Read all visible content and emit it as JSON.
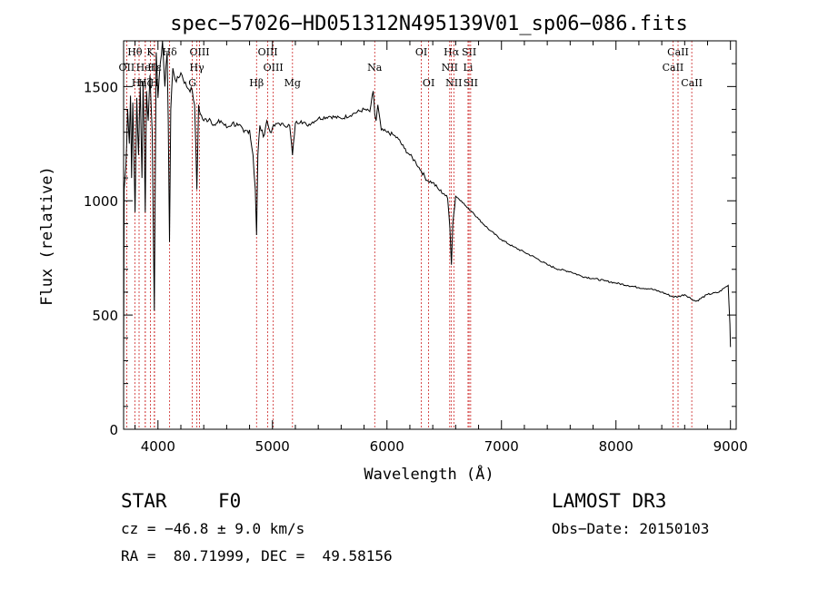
{
  "chart_data": {
    "type": "line",
    "title": "spec−57026−HD051312N495139V01_sp06−086.fits",
    "xlabel": "Wavelength (Å)",
    "ylabel": "Flux (relative)",
    "xlim": [
      3700,
      9050
    ],
    "ylim": [
      0,
      1700
    ],
    "xticks": [
      4000,
      5000,
      6000,
      7000,
      8000,
      9000
    ],
    "yticks": [
      0,
      500,
      1000,
      1500
    ],
    "grid": false,
    "series": [
      {
        "name": "Flux",
        "color": "#000000",
        "x": [
          3700,
          3705,
          3720,
          3735,
          3750,
          3760,
          3770,
          3780,
          3790,
          3800,
          3815,
          3830,
          3845,
          3860,
          3870,
          3880,
          3889,
          3900,
          3915,
          3930,
          3950,
          3968,
          3985,
          4000,
          4020,
          4040,
          4060,
          4080,
          4090,
          4101,
          4112,
          4130,
          4160,
          4200,
          4250,
          4300,
          4320,
          4340,
          4355,
          4370,
          4400,
          4450,
          4500,
          4550,
          4600,
          4650,
          4700,
          4750,
          4800,
          4830,
          4850,
          4861,
          4872,
          4890,
          4920,
          4950,
          4980,
          5000,
          5050,
          5100,
          5150,
          5175,
          5200,
          5250,
          5300,
          5400,
          5500,
          5600,
          5700,
          5800,
          5850,
          5880,
          5893,
          5905,
          5920,
          5950,
          6000,
          6050,
          6100,
          6150,
          6200,
          6250,
          6300,
          6350,
          6400,
          6450,
          6500,
          6530,
          6550,
          6563,
          6575,
          6600,
          6650,
          6700,
          6750,
          6800,
          6900,
          7000,
          7100,
          7200,
          7300,
          7400,
          7500,
          7600,
          7700,
          7800,
          7900,
          8000,
          8100,
          8200,
          8300,
          8400,
          8498,
          8542,
          8600,
          8662,
          8700,
          8800,
          8900,
          8950,
          8980,
          8995,
          9000
        ],
        "y": [
          300,
          1050,
          1150,
          1400,
          1250,
          1460,
          1100,
          1430,
          1200,
          950,
          1450,
          1200,
          1500,
          1100,
          1520,
          1300,
          950,
          1480,
          1350,
          1550,
          1300,
          520,
          1650,
          1450,
          1600,
          1700,
          1500,
          1650,
          1350,
          820,
          1400,
          1580,
          1520,
          1560,
          1500,
          1480,
          1420,
          1050,
          1420,
          1380,
          1350,
          1360,
          1330,
          1350,
          1320,
          1340,
          1330,
          1300,
          1310,
          1200,
          1050,
          850,
          1200,
          1330,
          1280,
          1350,
          1300,
          1320,
          1340,
          1330,
          1330,
          1200,
          1340,
          1350,
          1330,
          1360,
          1370,
          1360,
          1380,
          1400,
          1390,
          1480,
          1380,
          1350,
          1420,
          1310,
          1300,
          1290,
          1270,
          1230,
          1200,
          1170,
          1130,
          1090,
          1080,
          1050,
          1030,
          1010,
          880,
          720,
          900,
          1020,
          1000,
          970,
          950,
          920,
          870,
          830,
          800,
          775,
          750,
          720,
          700,
          690,
          670,
          660,
          650,
          640,
          630,
          620,
          615,
          600,
          580,
          580,
          590,
          570,
          560,
          590,
          600,
          620,
          630,
          460,
          360
        ]
      }
    ],
    "lines": [
      {
        "label": "Hθ",
        "x": 3798,
        "row": 0
      },
      {
        "label": "OII",
        "x": 3727,
        "row": 1
      },
      {
        "label": "Hη",
        "x": 3835,
        "row": 2
      },
      {
        "label": "HeI",
        "x": 3889,
        "row": 1
      },
      {
        "label": "Hζ",
        "x": 3889,
        "row": 2
      },
      {
        "label": "K",
        "x": 3934,
        "row": 0
      },
      {
        "label": "Hε",
        "x": 3970,
        "row": 1
      },
      {
        "label": "H",
        "x": 3968,
        "row": 2
      },
      {
        "label": "Hδ",
        "x": 4102,
        "row": 0
      },
      {
        "label": "G",
        "x": 4300,
        "row": 2
      },
      {
        "label": "OIII",
        "x": 4363,
        "row": 0
      },
      {
        "label": "Hγ",
        "x": 4340,
        "row": 1
      },
      {
        "label": "Hβ",
        "x": 4861,
        "row": 3
      },
      {
        "label": "OIII",
        "x": 4959,
        "row": 0
      },
      {
        "label": "OIII",
        "x": 5007,
        "row": 1
      },
      {
        "label": "Mg",
        "x": 5175,
        "row": 3
      },
      {
        "label": "Na",
        "x": 5893,
        "row": 1
      },
      {
        "label": "OI",
        "x": 6300,
        "row": 0
      },
      {
        "label": "OI",
        "x": 6364,
        "row": 2
      },
      {
        "label": "Hα",
        "x": 6563,
        "row": 0
      },
      {
        "label": "NII",
        "x": 6548,
        "row": 1
      },
      {
        "label": "NII",
        "x": 6584,
        "row": 2
      },
      {
        "label": "SII",
        "x": 6717,
        "row": 0
      },
      {
        "label": "Li",
        "x": 6708,
        "row": 1
      },
      {
        "label": "SII",
        "x": 6731,
        "row": 2
      },
      {
        "label": "CaII",
        "x": 8542,
        "row": 0
      },
      {
        "label": "CaII",
        "x": 8498,
        "row": 1
      },
      {
        "label": "CaII",
        "x": 8662,
        "row": 2
      }
    ]
  },
  "footer": {
    "object_type": "STAR",
    "spectral_class": "F0",
    "survey": "LAMOST DR3",
    "redshift": "cz = −46.8 ± 9.0 km/s",
    "obs_date": "Obs−Date: 20150103",
    "coords": "RA =  80.71999, DEC =  49.58156"
  }
}
